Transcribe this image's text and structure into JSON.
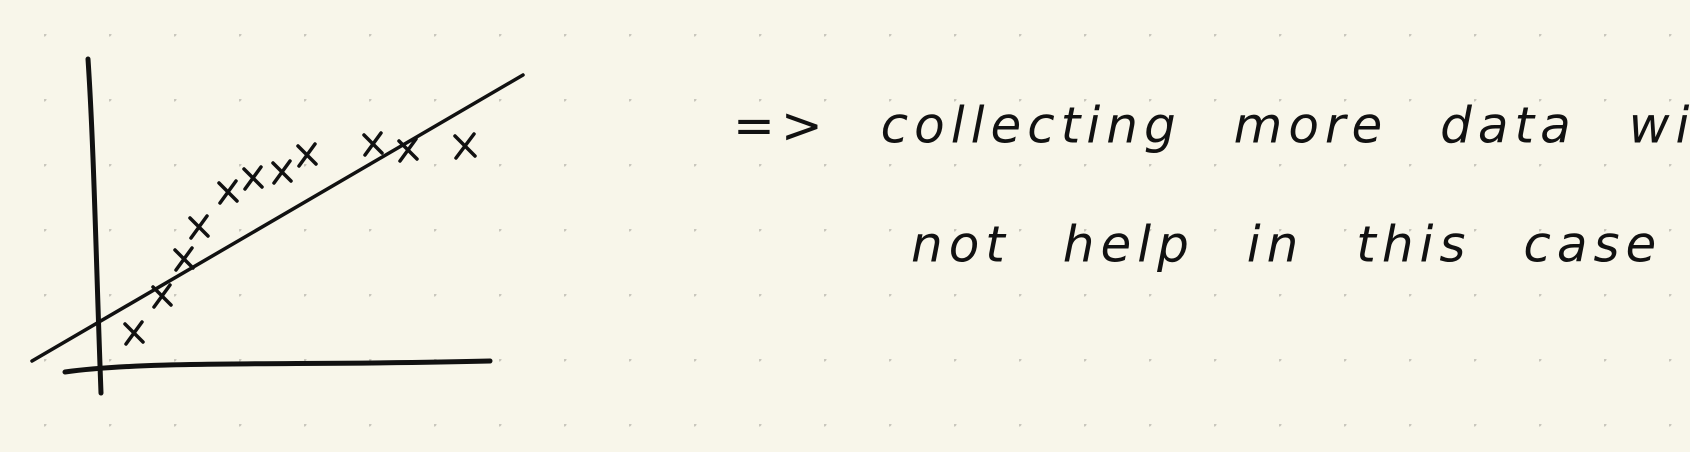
{
  "note": {
    "line1": "=> collecting more data will",
    "line2": "not help in this case"
  }
}
